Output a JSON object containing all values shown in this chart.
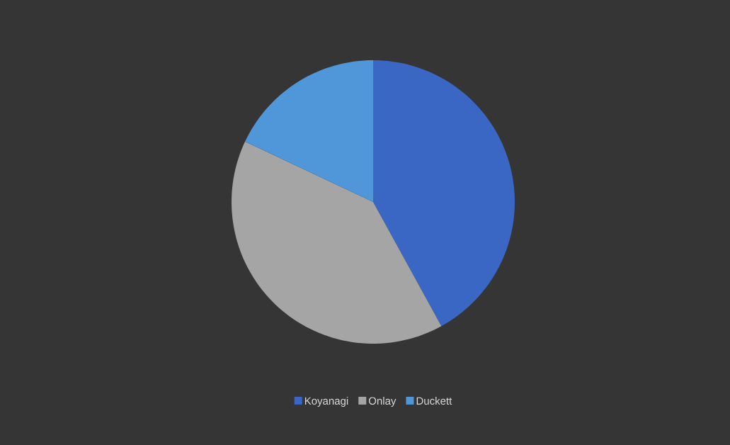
{
  "chart_data": {
    "type": "pie",
    "categories": [
      "Koyanagi",
      "Onlay",
      "Duckett"
    ],
    "values": [
      42,
      40,
      18
    ],
    "colors": [
      "#3a67c4",
      "#a5a5a5",
      "#4f97d9"
    ],
    "legend": "bottom"
  }
}
